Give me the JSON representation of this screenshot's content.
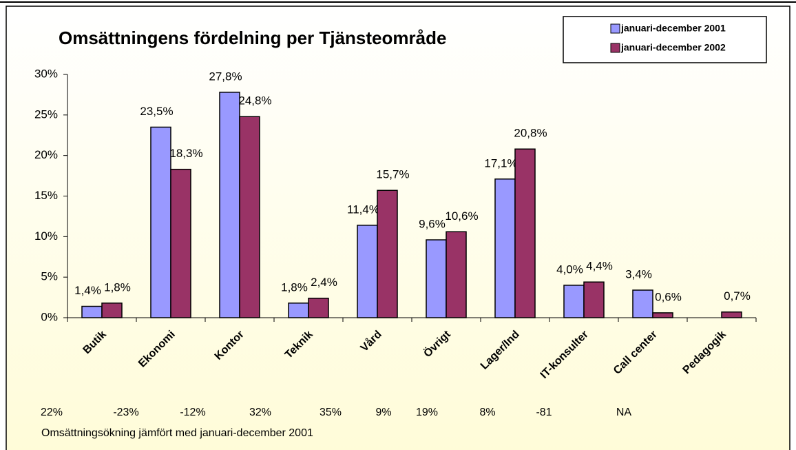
{
  "chart_data": {
    "type": "bar",
    "title": "Omsättningens fördelning per Tjänsteområde",
    "categories": [
      "Butik",
      "Ekonomi",
      "Kontor",
      "Teknik",
      "Vård",
      "Övrigt",
      "Lager/Ind",
      "IT-konsulter",
      "Call center",
      "Pedagogik"
    ],
    "series": [
      {
        "name": "januari-december 2001",
        "color": "#9999ff",
        "values": [
          1.4,
          23.5,
          27.8,
          1.8,
          11.4,
          9.6,
          17.1,
          4.0,
          3.4,
          null
        ],
        "value_labels": [
          "1,4%",
          "23,5%",
          "27,8%",
          "1,8%",
          "11,4%",
          "9,6%",
          "17,1%",
          "4,0%",
          "3,4%",
          null
        ]
      },
      {
        "name": "januari-december 2002",
        "color": "#993366",
        "values": [
          1.8,
          18.3,
          24.8,
          2.4,
          15.7,
          10.6,
          20.8,
          4.4,
          0.6,
          0.7
        ],
        "value_labels": [
          "1,8%",
          "18,3%",
          "24,8%",
          "2,4%",
          "15,7%",
          "10,6%",
          "20,8%",
          "4,4%",
          "0,6%",
          "0,7%"
        ]
      }
    ],
    "ylim": [
      0,
      30
    ],
    "yticks": [
      {
        "value": 0,
        "label": "0%"
      },
      {
        "value": 5,
        "label": "5%"
      },
      {
        "value": 10,
        "label": "10%"
      },
      {
        "value": 15,
        "label": "15%"
      },
      {
        "value": 20,
        "label": "20%"
      },
      {
        "value": 25,
        "label": "25%"
      },
      {
        "value": 30,
        "label": "30%"
      }
    ],
    "grid": false,
    "legend": "top-right",
    "annotations": [
      "22%",
      "-23%",
      "-12%",
      "32%",
      "35%",
      "9%",
      "19%",
      "8%",
      "-81",
      "NA"
    ],
    "footnote": "Omsättningsökning jämfört med januari-december 2001"
  }
}
